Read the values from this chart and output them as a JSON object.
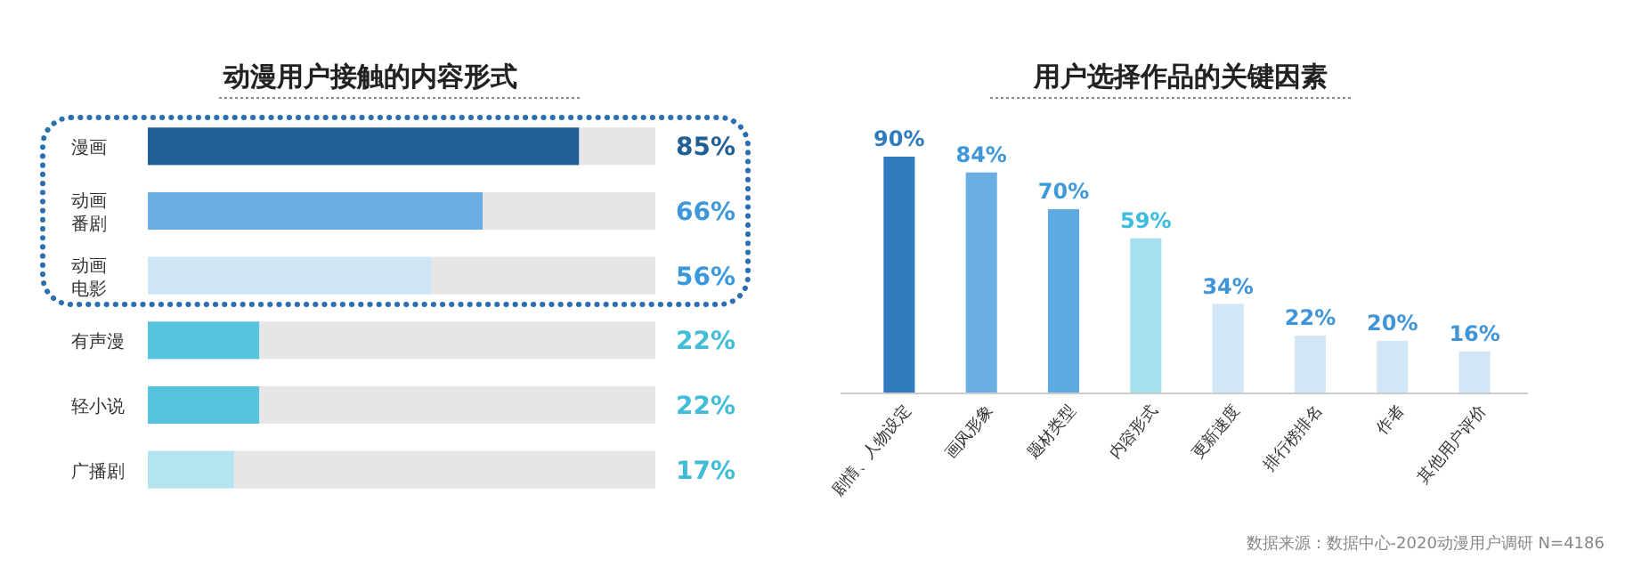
{
  "chart_data": [
    {
      "type": "bar",
      "orientation": "horizontal",
      "stacked": true,
      "title": "动漫用户接触的内容形式",
      "categories": [
        "漫画",
        "动画番剧",
        "动画电影",
        "有声漫",
        "轻小说",
        "广播剧"
      ],
      "series": [
        {
          "colors": [
            "#1f5f94",
            "#68aee3",
            "#cfe6f7",
            "#56c4dc",
            "#56c4dc",
            "#b3e4ef"
          ],
          "values": [
            85,
            66,
            56,
            22,
            22,
            17
          ],
          "value_labels": [
            "85%",
            "66%",
            "56%",
            "22%",
            "22%",
            "17%"
          ]
        },
        {
          "color": "#e6e6e8",
          "values": [
            15,
            34,
            44,
            78,
            78,
            83
          ]
        }
      ],
      "xlim": [
        0,
        100
      ],
      "tick_labels": "y"
    },
    {
      "type": "bar",
      "title": "用户选择作品的关键因素",
      "categories": [
        "剧情、人物设定",
        "画风形象",
        "题材类型",
        "内容形式",
        "更新速度",
        "排行榜排名",
        "作者",
        "其他用户评价"
      ],
      "values": [
        90,
        84,
        70,
        59,
        34,
        22,
        20,
        16
      ],
      "colors": [
        "#2f7bbd",
        "#6aaee2",
        "#5da9e0",
        "#a6e0ef",
        "#d2e6f6",
        "#d2e6f6",
        "#d2e6f6",
        "#d2e6f6"
      ],
      "value_labels": [
        "90%",
        "84%",
        "70%",
        "59%",
        "34%",
        "22%",
        "20%",
        "16%"
      ],
      "tick_labels": "x",
      "annotations": [
        "数据来源：数据中心-2020动漫用户调研 N=4186"
      ]
    }
  ]
}
